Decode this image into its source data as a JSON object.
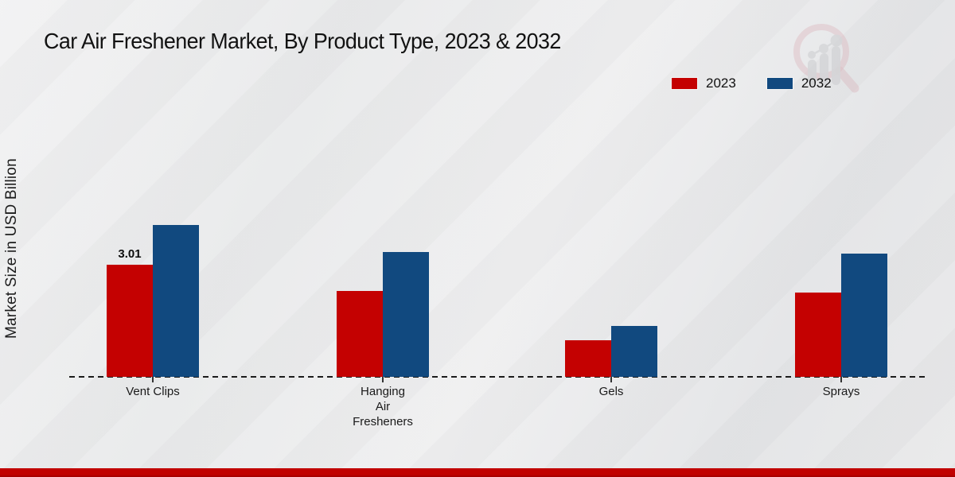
{
  "page": {
    "title": "Car Air Freshener Market, By Product Type, 2023 & 2032"
  },
  "chart_data": {
    "type": "bar",
    "title": "Car Air Freshener Market, By Product Type, 2023 & 2032",
    "xlabel": "",
    "ylabel": "Market Size in USD Billion",
    "categories": [
      "Vent Clips",
      "Hanging Air Fresheners",
      "Gels",
      "Sprays"
    ],
    "category_tick_lines": [
      [
        "Vent Clips"
      ],
      [
        "Hanging",
        "Air",
        "Fresheners"
      ],
      [
        "Gels"
      ],
      [
        "Sprays"
      ]
    ],
    "series": [
      {
        "name": "2023",
        "color": "#c40101",
        "values": [
          3.01,
          2.31,
          0.98,
          2.27
        ]
      },
      {
        "name": "2032",
        "color": "#11497f",
        "values": [
          4.08,
          3.35,
          1.37,
          3.31
        ]
      }
    ],
    "data_labels": [
      {
        "series": "2023",
        "category_index": 0,
        "text": "3.01"
      }
    ],
    "ylim": [
      0,
      4.5
    ],
    "grid": false,
    "legend_position": "top-right",
    "baseline_style": "dashed",
    "y_axis_ticks_visible": false
  },
  "watermark": {
    "name": "market-research-future-logo"
  },
  "footer": {
    "accent_color": "#c10100"
  }
}
